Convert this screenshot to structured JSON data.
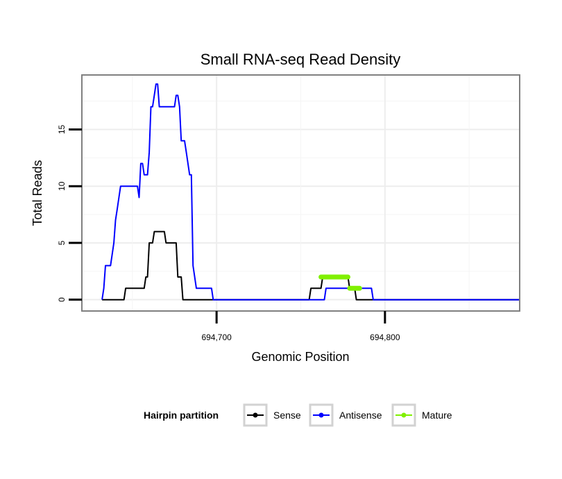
{
  "chart_data": {
    "type": "line",
    "title": "Small RNA-seq Read Density",
    "xlabel": "Genomic Position",
    "ylabel": "Total Reads",
    "xlim": [
      694620,
      694880
    ],
    "ylim": [
      -1,
      19.8
    ],
    "x_ticks": [
      694700,
      694800
    ],
    "x_tick_labels": [
      "694,700",
      "694,800"
    ],
    "y_ticks": [
      0,
      5,
      10,
      15
    ],
    "y_tick_labels": [
      "0",
      "5",
      "10",
      "15"
    ],
    "grid": true,
    "legend_position": "bottom",
    "legend_title": "Hairpin partition",
    "series": [
      {
        "name": "Sense",
        "color": "#000000",
        "x": [
          694632,
          694645,
          694646,
          694657,
          694658,
          694659,
          694660,
          694661,
          694662,
          694663,
          694664,
          694665,
          694666,
          694667,
          694668,
          694669,
          694670,
          694671,
          694672,
          694673,
          694674,
          694675,
          694676,
          694677,
          694678,
          694679,
          694680,
          694755,
          694756,
          694762,
          694763,
          694778,
          694779,
          694782,
          694783,
          694880
        ],
        "y": [
          0,
          0,
          1,
          1,
          2,
          2,
          5,
          5,
          5,
          6,
          6,
          6,
          6,
          6,
          6,
          6,
          5,
          5,
          5,
          5,
          5,
          5,
          5,
          2,
          2,
          2,
          0,
          0,
          1,
          1,
          2,
          2,
          1,
          1,
          0,
          0
        ]
      },
      {
        "name": "Antisense",
        "color": "#0000ff",
        "x": [
          694632,
          694633,
          694634,
          694636,
          694637,
          694638,
          694639,
          694640,
          694641,
          694642,
          694643,
          694645,
          694646,
          694647,
          694653,
          694654,
          694655,
          694656,
          694657,
          694658,
          694659,
          694660,
          694661,
          694662,
          694663,
          694664,
          694665,
          694666,
          694667,
          694668,
          694669,
          694674,
          694675,
          694676,
          694677,
          694678,
          694679,
          694680,
          694681,
          694682,
          694683,
          694684,
          694685,
          694686,
          694687,
          694688,
          694689,
          694690,
          694697,
          694698,
          694764,
          694765,
          694783,
          694784,
          694792,
          694793,
          694880
        ],
        "y": [
          0,
          1,
          3,
          3,
          3,
          4,
          5,
          7,
          8,
          9,
          10,
          10,
          10,
          10,
          10,
          9,
          12,
          12,
          11,
          11,
          11,
          13,
          17,
          17,
          18,
          19,
          19,
          17,
          17,
          17,
          17,
          17,
          17,
          18,
          18,
          17,
          14,
          14,
          14,
          13,
          12,
          11,
          11,
          3,
          2,
          1,
          1,
          1,
          1,
          0,
          0,
          1,
          1,
          1,
          1,
          0,
          0
        ]
      },
      {
        "name": "Mature",
        "color": "#80f000",
        "x": [
          694762,
          694778,
          null,
          694779,
          694785
        ],
        "y": [
          2,
          2,
          null,
          1,
          1
        ]
      }
    ]
  }
}
